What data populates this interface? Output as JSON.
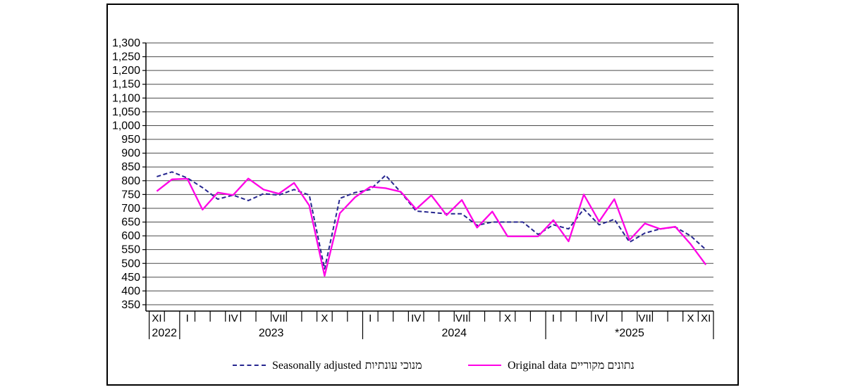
{
  "chart_data": {
    "type": "line",
    "title": "",
    "grid": true,
    "legend_position": "bottom",
    "x_axis": {
      "categories": [
        "XI",
        "XII",
        "I",
        "II",
        "III",
        "IV",
        "V",
        "VI",
        "VII",
        "VIII",
        "IX",
        "X",
        "XI",
        "XII",
        "I",
        "II",
        "III",
        "IV",
        "V",
        "VI",
        "VII",
        "VIII",
        "IX",
        "X",
        "XI",
        "XII",
        "I",
        "II",
        "III",
        "IV",
        "V",
        "VI",
        "VII",
        "VIII",
        "IX",
        "X",
        "XI"
      ],
      "tick_labels": [
        {
          "index": 0,
          "label": "XI"
        },
        {
          "index": 2,
          "label": "I"
        },
        {
          "index": 5,
          "label": "IV"
        },
        {
          "index": 8,
          "label": "VII"
        },
        {
          "index": 11,
          "label": "X"
        },
        {
          "index": 14,
          "label": "I"
        },
        {
          "index": 17,
          "label": "IV"
        },
        {
          "index": 20,
          "label": "VII"
        },
        {
          "index": 23,
          "label": "X"
        },
        {
          "index": 26,
          "label": "I"
        },
        {
          "index": 29,
          "label": "IV"
        },
        {
          "index": 32,
          "label": "VII"
        },
        {
          "index": 35,
          "label": "X"
        },
        {
          "index": 36,
          "label": "XI"
        }
      ],
      "year_groups": [
        {
          "label": "2022",
          "start": 0,
          "count": 2
        },
        {
          "label": "2023",
          "start": 2,
          "count": 12
        },
        {
          "label": "2024",
          "start": 14,
          "count": 12
        },
        {
          "label": "*2025",
          "start": 26,
          "count": 11
        }
      ]
    },
    "y_axis": {
      "min": 350,
      "max": 1300,
      "step": 50,
      "tick_labels": [
        "1,300",
        "1,250",
        "1,200",
        "1,150",
        "1,100",
        "1,050",
        "1,000",
        "950",
        "900",
        "850",
        "800",
        "750",
        "700",
        "650",
        "600",
        "550",
        "500",
        "450",
        "400",
        "350"
      ]
    },
    "series": [
      {
        "name": "Seasonally adjusted",
        "name_he": "מנוכי עונתיות",
        "color": "#26268F",
        "line_style": "dashed",
        "values": [
          815,
          832,
          810,
          775,
          733,
          748,
          728,
          753,
          748,
          768,
          748,
          480,
          736,
          757,
          768,
          820,
          758,
          690,
          685,
          680,
          680,
          638,
          650,
          650,
          650,
          605,
          640,
          625,
          697,
          640,
          660,
          577,
          610,
          625,
          632,
          600,
          550
        ]
      },
      {
        "name": "Original data",
        "name_he": "נתונים מקוריים",
        "color": "#FF00E6",
        "line_style": "solid",
        "values": [
          762,
          805,
          807,
          695,
          757,
          748,
          808,
          768,
          753,
          792,
          710,
          455,
          682,
          740,
          778,
          773,
          760,
          697,
          747,
          675,
          730,
          630,
          688,
          598,
          598,
          598,
          657,
          580,
          750,
          652,
          733,
          585,
          645,
          625,
          633,
          570,
          495
        ]
      }
    ]
  },
  "colors": {
    "grid": "#4A4A4A",
    "axis": "#000000",
    "frame": "#000000",
    "background": "#FFFFFF"
  }
}
